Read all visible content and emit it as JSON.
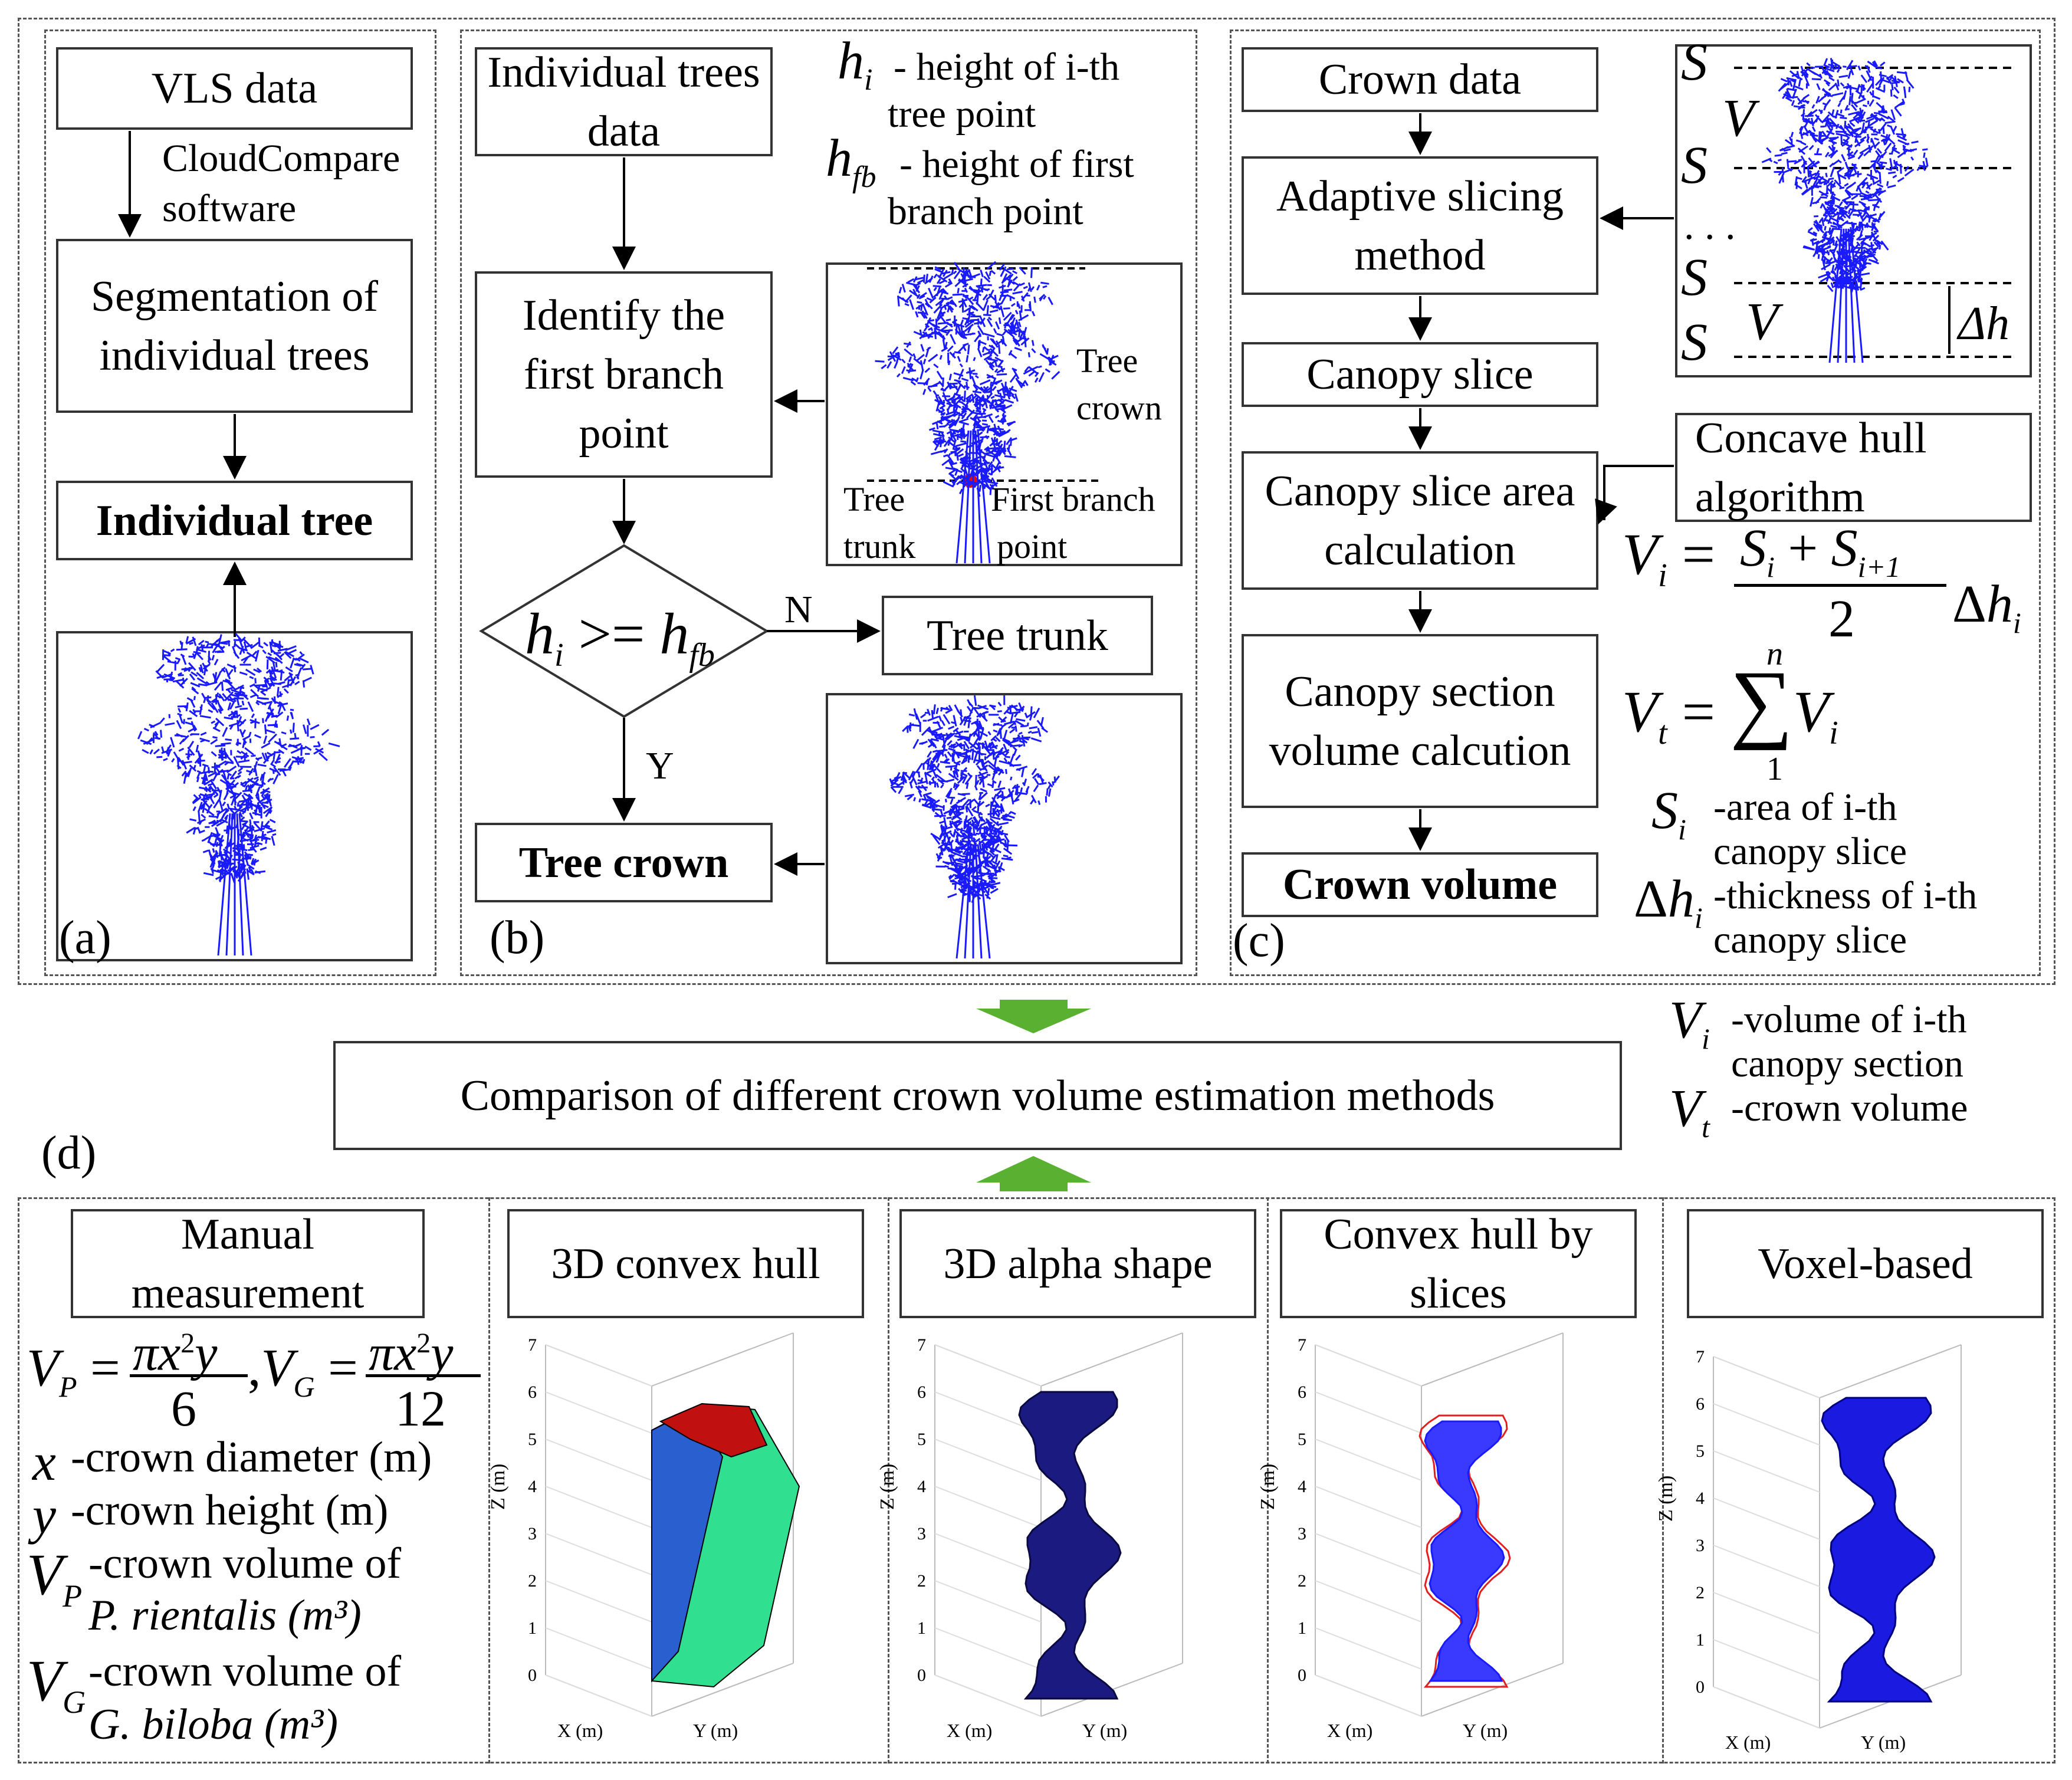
{
  "panel_a": {
    "label": "(a)",
    "vls": "VLS data",
    "software": "CloudCompare",
    "software2": "software",
    "segmentation": "Segmentation of individual trees",
    "individual_tree": "Individual tree"
  },
  "panel_b": {
    "label": "(b)",
    "individual_trees": "Individual trees data",
    "hi_def1": "- height of i-th",
    "hi_def2": "tree point",
    "hfb_def1": "- height of first",
    "hfb_def2": "branch point",
    "identify": "Identify the first branch point",
    "tree_crown_label": "Tree",
    "tree_crown_label2": "crown",
    "tree_trunk_label": "Tree",
    "tree_trunk_label2": "trunk",
    "first_branch1": "First branch",
    "first_branch2": "point",
    "decision": ">=",
    "n": "N",
    "y": "Y",
    "tree_trunk": "Tree trunk",
    "tree_crown": "Tree crown"
  },
  "panel_c": {
    "label": "(c)",
    "crown_data": "Crown data",
    "adaptive": "Adaptive slicing method",
    "canopy_slice": "Canopy slice",
    "area_calc": "Canopy slice area calculation",
    "volume_calc": "Canopy section volume calcution",
    "crown_volume": "Crown volume",
    "concave": "Concave hull algorithm",
    "si_def1": "-area of i-th",
    "si_def2": "canopy slice",
    "dh_def1": "-thickness of i-th",
    "dh_def2": "canopy slice",
    "vi_def1": "-volume of i-th",
    "vi_def2": "canopy section",
    "vt_def": "-crown volume"
  },
  "panel_d": {
    "label": "(d)",
    "comparison": "Comparison of different crown volume estimation methods",
    "manual": "Manual measurement",
    "x_def": "-crown diameter (m)",
    "y_def": "-crown height (m)",
    "vp_def1": "-crown volume of",
    "vp_def2": "P. rientalis (m³)",
    "vg_def1": "-crown volume of",
    "vg_def2": "G. biloba (m³)",
    "methods": [
      "3D convex hull",
      "3D alpha shape",
      "Convex hull by slices",
      "Voxel-based"
    ],
    "z_axis": "Z (m)",
    "x_axis": "X (m)",
    "y_axis": "Y (m)"
  },
  "colors": {
    "tree": "#1a1aff",
    "arrow_green": "#5ab030",
    "convex_blue": "#2a5fd0",
    "convex_green": "#30e090",
    "convex_red": "#c01010"
  }
}
